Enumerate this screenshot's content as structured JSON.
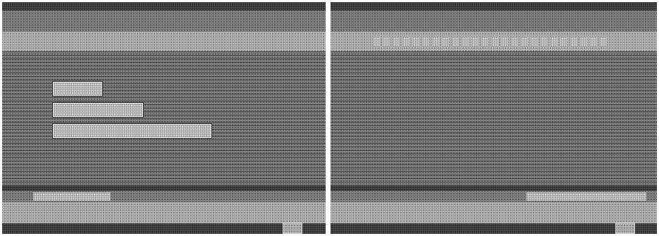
{
  "screens": [
    {
      "id": "left",
      "description_role": "menu-screen",
      "menu_items": [
        {
          "label": ""
        },
        {
          "label": ""
        },
        {
          "label": ""
        }
      ]
    },
    {
      "id": "right",
      "description_role": "text-screen"
    }
  ],
  "colors": {
    "screen_bg": "#1b1b1b",
    "halftone_mid": "#6e6e6e",
    "halftone_light": "#9a9a9a",
    "highlight": "#cfcfcf"
  }
}
